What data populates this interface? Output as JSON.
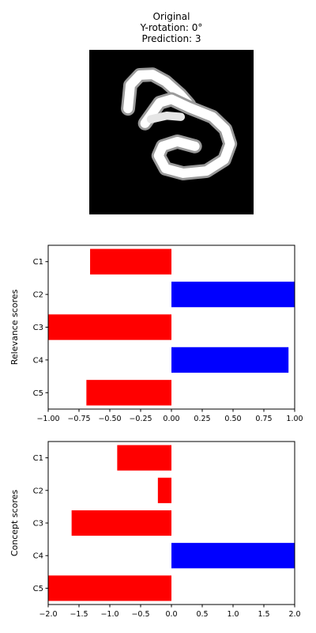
{
  "image_panel": {
    "title_lines": [
      "Original",
      "Y-rotation: 0°",
      "Prediction: 3"
    ],
    "description": ""
  },
  "colors": {
    "negative": "#ff0000",
    "positive": "#0000ff",
    "background": "#000000"
  },
  "chart_data": [
    {
      "type": "bar",
      "orientation": "horizontal",
      "categories": [
        "C1",
        "C2",
        "C3",
        "C4",
        "C5"
      ],
      "values": [
        -0.66,
        1.0,
        -1.0,
        0.95,
        -0.69
      ],
      "title": "",
      "xlabel": "",
      "ylabel": "Relevance scores",
      "xlim": [
        -1.0,
        1.0
      ],
      "xticks": [
        "−1.00",
        "−0.75",
        "−0.50",
        "−0.25",
        "0.00",
        "0.25",
        "0.50",
        "0.75",
        "1.00"
      ],
      "grid": false,
      "legend": "none"
    },
    {
      "type": "bar",
      "orientation": "horizontal",
      "categories": [
        "C1",
        "C2",
        "C3",
        "C4",
        "C5"
      ],
      "values": [
        -0.88,
        -0.22,
        -1.62,
        2.0,
        -2.0
      ],
      "title": "",
      "xlabel": "",
      "ylabel": "Concept scores",
      "xlim": [
        -2.0,
        2.0
      ],
      "xticks": [
        "−2.0",
        "−1.5",
        "−1.0",
        "−0.5",
        "0.0",
        "0.5",
        "1.0",
        "1.5",
        "2.0"
      ],
      "grid": false,
      "legend": "none"
    }
  ]
}
